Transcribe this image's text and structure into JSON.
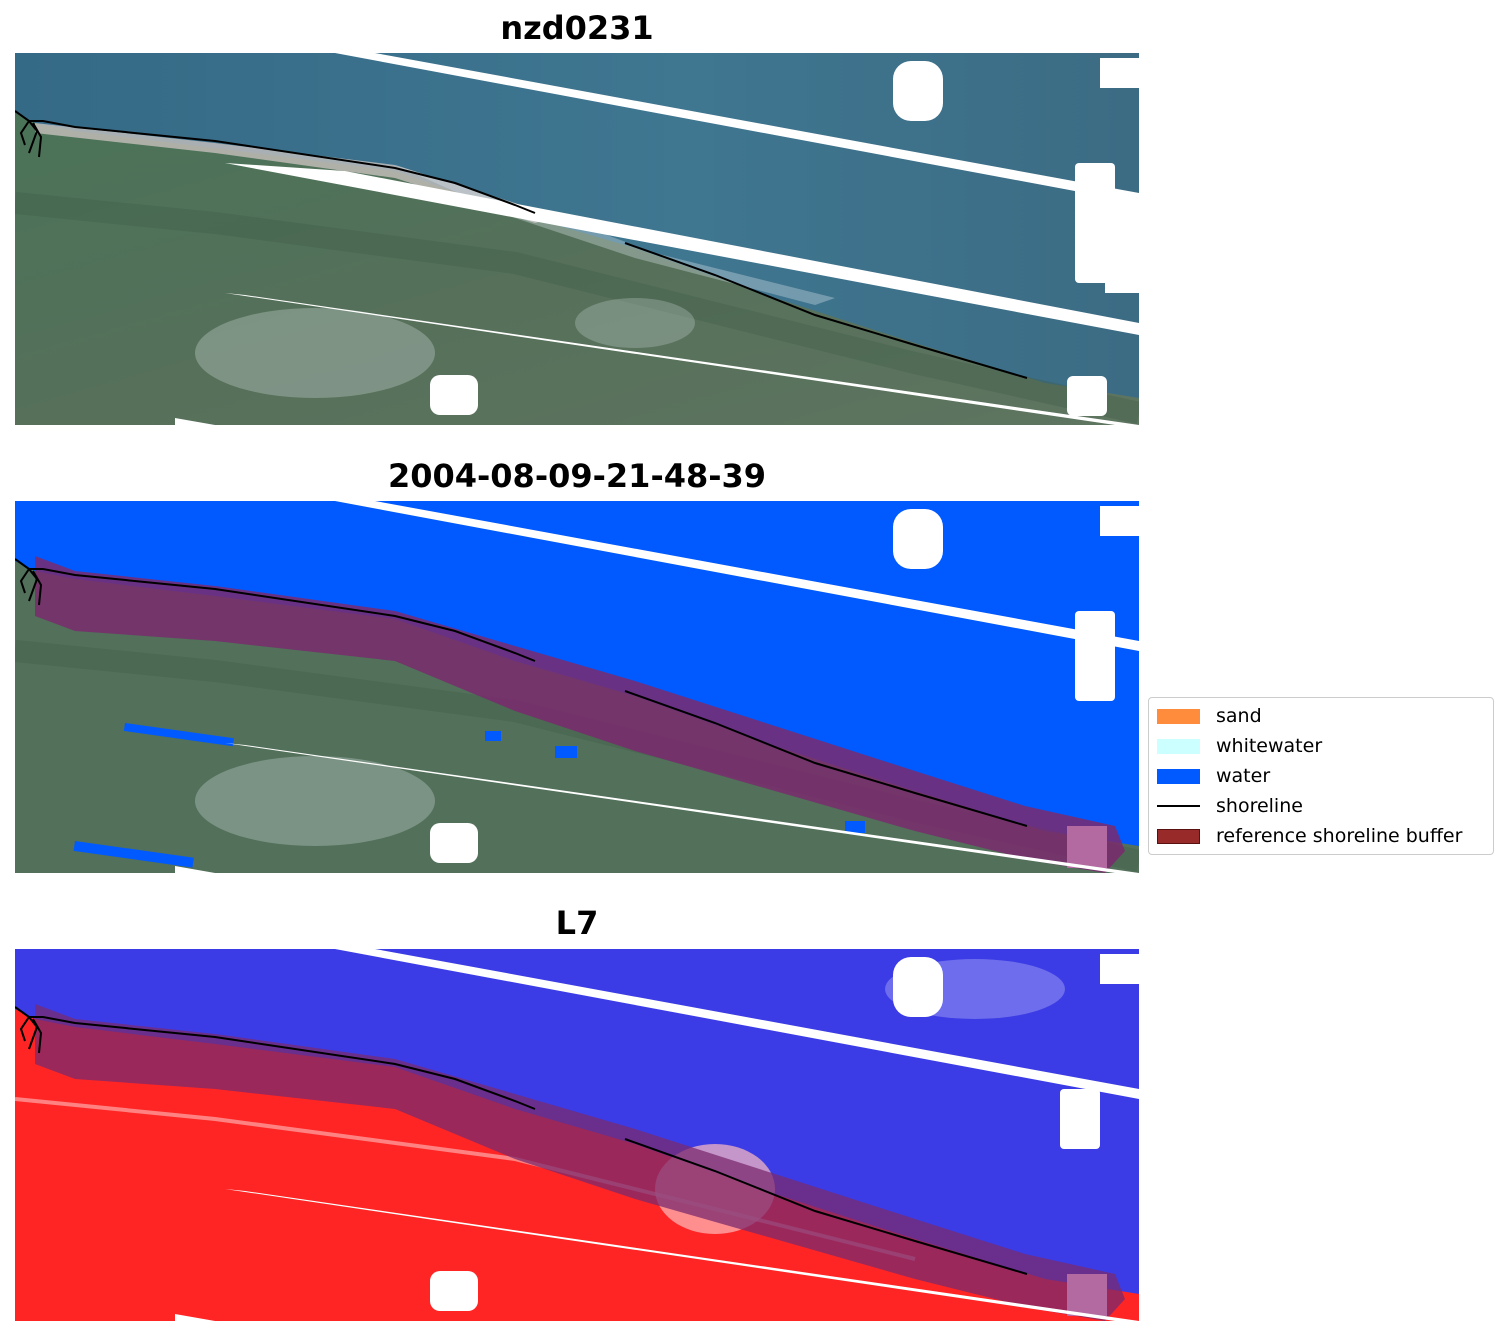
{
  "panels": [
    {
      "title": "nzd0231",
      "kind": "rgb"
    },
    {
      "title": "2004-08-09-21-48-39",
      "kind": "classified"
    },
    {
      "title": "L7",
      "kind": "index"
    }
  ],
  "legend": {
    "items": [
      {
        "label": "sand",
        "color": "#ff8c3c",
        "kind": "patch"
      },
      {
        "label": "whitewater",
        "color": "#ccffff",
        "kind": "patch"
      },
      {
        "label": "water",
        "color": "#005aff",
        "kind": "patch"
      },
      {
        "label": "shoreline",
        "color": "#000000",
        "kind": "line"
      },
      {
        "label": "reference shoreline buffer",
        "color": "#992a2a",
        "kind": "patch"
      }
    ]
  },
  "colors": {
    "sea": "#3c6f8a",
    "land": "#4b6e55",
    "water_class": "#005aff",
    "buffer_overlay": "#7a2a6e",
    "index_water": "#3a3ae8",
    "index_land": "#ff2a2a",
    "shoreline": "#000000",
    "cloud": "#ffffff"
  }
}
